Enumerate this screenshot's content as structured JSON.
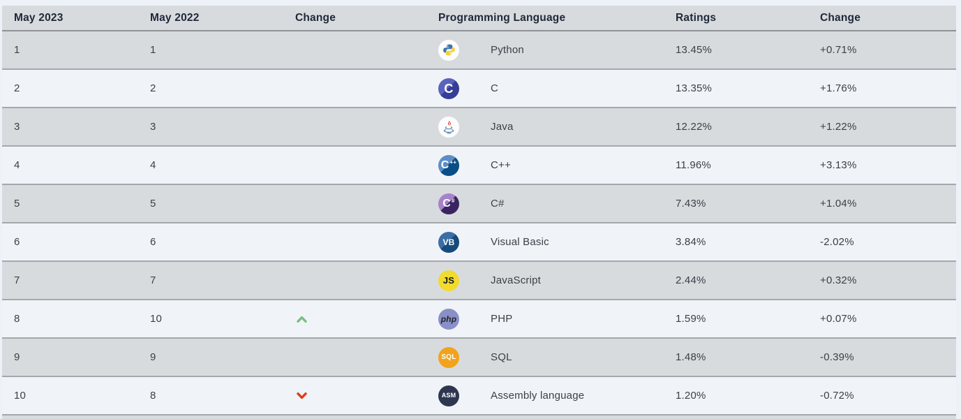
{
  "table": {
    "headers": [
      "May 2023",
      "May 2022",
      "Change",
      "Programming Language",
      "Ratings",
      "Change"
    ],
    "rows": [
      {
        "rank2023": "1",
        "rank2022": "1",
        "trend": "none",
        "language": "Python",
        "icon": "python",
        "ratings": "13.45%",
        "change": "+0.71%"
      },
      {
        "rank2023": "2",
        "rank2022": "2",
        "trend": "none",
        "language": "C",
        "icon": "c",
        "ratings": "13.35%",
        "change": "+1.76%"
      },
      {
        "rank2023": "3",
        "rank2022": "3",
        "trend": "none",
        "language": "Java",
        "icon": "java",
        "ratings": "12.22%",
        "change": "+1.22%"
      },
      {
        "rank2023": "4",
        "rank2022": "4",
        "trend": "none",
        "language": "C++",
        "icon": "cpp",
        "ratings": "11.96%",
        "change": "+3.13%"
      },
      {
        "rank2023": "5",
        "rank2022": "5",
        "trend": "none",
        "language": "C#",
        "icon": "csharp",
        "ratings": "7.43%",
        "change": "+1.04%"
      },
      {
        "rank2023": "6",
        "rank2022": "6",
        "trend": "none",
        "language": "Visual Basic",
        "icon": "vb",
        "ratings": "3.84%",
        "change": "-2.02%"
      },
      {
        "rank2023": "7",
        "rank2022": "7",
        "trend": "none",
        "language": "JavaScript",
        "icon": "js",
        "ratings": "2.44%",
        "change": "+0.32%"
      },
      {
        "rank2023": "8",
        "rank2022": "10",
        "trend": "up",
        "language": "PHP",
        "icon": "php",
        "ratings": "1.59%",
        "change": "+0.07%"
      },
      {
        "rank2023": "9",
        "rank2022": "9",
        "trend": "none",
        "language": "SQL",
        "icon": "sql",
        "ratings": "1.48%",
        "change": "-0.39%"
      },
      {
        "rank2023": "10",
        "rank2022": "8",
        "trend": "down",
        "language": "Assembly language",
        "icon": "asm",
        "ratings": "1.20%",
        "change": "-0.72%"
      }
    ]
  },
  "icons": {
    "python": {
      "icon_name": "python-icon",
      "bg": "#fdfdfd",
      "kind": "svg-python"
    },
    "c": {
      "icon_name": "c-icon",
      "bg1": "#5a63bb",
      "bg2": "#353e96",
      "glyph": "C",
      "fg": "#ffffff",
      "size": "18px",
      "kind": "glyph"
    },
    "java": {
      "icon_name": "java-icon",
      "bg": "#fcfcfc",
      "kind": "svg-java"
    },
    "cpp": {
      "icon_name": "cpp-icon",
      "bg1": "#5c8ec6",
      "bg2": "#084f87",
      "glyph": "C",
      "sup": "++",
      "fg": "#ffffff",
      "size": "16px",
      "kind": "glyph"
    },
    "csharp": {
      "icon_name": "csharp-icon",
      "bg1": "#a582c9",
      "bg2": "#3a2360",
      "glyph": "C",
      "sup": "#",
      "fg": "#ffffff",
      "size": "16px",
      "kind": "glyph"
    },
    "vb": {
      "icon_name": "visual-basic-icon",
      "bg1": "#3a6ea5",
      "bg2": "#174a7c",
      "glyph": "VB",
      "fg": "#ffffff",
      "size": "12px",
      "kind": "glyph"
    },
    "js": {
      "icon_name": "javascript-icon",
      "bg": "#f0db2e",
      "glyph": "JS",
      "fg": "#17171b",
      "size": "13px",
      "kind": "glyph"
    },
    "php": {
      "icon_name": "php-icon",
      "bg": "#8a90c7",
      "glyph": "php",
      "fg": "#23252f",
      "size": "12px",
      "italic": true,
      "kind": "glyph"
    },
    "sql": {
      "icon_name": "sql-icon",
      "bg": "#f2a31b",
      "glyph": "SQL",
      "fg": "#ffffff",
      "size": "10px",
      "kind": "glyph"
    },
    "asm": {
      "icon_name": "assembly-icon",
      "bg": "#2e3650",
      "glyph": "ASM",
      "fg": "#ffffff",
      "size": "9px",
      "kind": "glyph"
    }
  },
  "trend_colors": {
    "up": "#77c17a",
    "down": "#e03b16"
  },
  "theme": {
    "page_bg": "#edf2f8",
    "row_gray": "#d8dbde",
    "row_light": "#f0f4f9",
    "separator": "#a4a8ad",
    "header_text": "#1f2839",
    "body_text": "#3a3f47"
  },
  "chart_data": {
    "type": "table",
    "columns": [
      "May 2023",
      "May 2022",
      "Change",
      "Programming Language",
      "Ratings",
      "Change"
    ],
    "rows": [
      [
        "1",
        "1",
        "",
        "Python",
        "13.45%",
        "+0.71%"
      ],
      [
        "2",
        "2",
        "",
        "C",
        "13.35%",
        "+1.76%"
      ],
      [
        "3",
        "3",
        "",
        "Java",
        "12.22%",
        "+1.22%"
      ],
      [
        "4",
        "4",
        "",
        "C++",
        "11.96%",
        "+3.13%"
      ],
      [
        "5",
        "5",
        "",
        "C#",
        "7.43%",
        "+1.04%"
      ],
      [
        "6",
        "6",
        "",
        "Visual Basic",
        "3.84%",
        "-2.02%"
      ],
      [
        "7",
        "7",
        "",
        "JavaScript",
        "2.44%",
        "+0.32%"
      ],
      [
        "8",
        "10",
        "up",
        "PHP",
        "1.59%",
        "+0.07%"
      ],
      [
        "9",
        "9",
        "",
        "SQL",
        "1.48%",
        "-0.39%"
      ],
      [
        "10",
        "8",
        "down",
        "Assembly language",
        "1.20%",
        "-0.72%"
      ]
    ]
  }
}
